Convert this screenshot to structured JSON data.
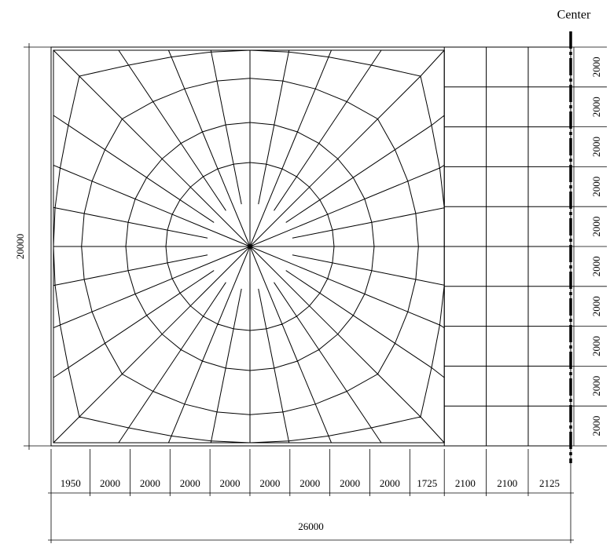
{
  "center_label": "Center",
  "horizontal_dimensions": {
    "segments": [
      1950,
      2000,
      2000,
      2000,
      2000,
      2000,
      2000,
      2000,
      2000,
      1725,
      2100,
      2100,
      2125
    ],
    "total": 26000
  },
  "vertical_dimensions": {
    "segments": [
      2000,
      2000,
      2000,
      2000,
      2000,
      2000,
      2000,
      2000,
      2000,
      2000
    ],
    "total": 20000
  }
}
